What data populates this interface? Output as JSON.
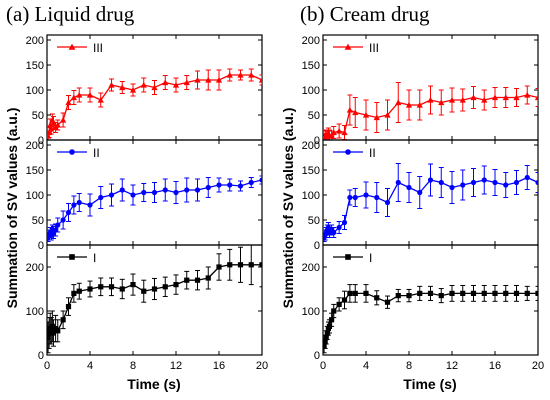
{
  "figure": {
    "panel_a_title": "(a) Liquid drug",
    "panel_b_title": "(b) Cream drug",
    "ylabel": "Summation of SV values (a.u.)",
    "xlabel": "Time (s)"
  },
  "chart_data": [
    {
      "type": "line",
      "panel": "a",
      "title": "(a) Liquid drug",
      "xlabel": "Time (s)",
      "ylabel": "Summation of SV values (a.u.)",
      "xlim": [
        0,
        20
      ],
      "xticks": [
        0,
        4,
        8,
        12,
        16,
        20
      ],
      "legend_position": "top-left",
      "grid": false,
      "subplots": [
        {
          "row": "top",
          "name": "III",
          "color": "#ff0000",
          "marker": "triangle",
          "ylim": [
            0,
            210
          ],
          "yticks": [
            0,
            50,
            100,
            150,
            200
          ],
          "x": [
            0.1,
            0.2,
            0.3,
            0.4,
            0.5,
            0.6,
            0.8,
            1.0,
            1.5,
            2.0,
            2.5,
            3,
            4,
            5,
            6,
            7,
            8,
            9,
            10,
            11,
            12,
            13,
            14,
            15,
            16,
            17,
            18,
            19,
            20
          ],
          "y": [
            8,
            15,
            30,
            22,
            40,
            35,
            25,
            30,
            40,
            75,
            85,
            90,
            90,
            80,
            110,
            105,
            100,
            110,
            105,
            115,
            110,
            115,
            120,
            120,
            120,
            130,
            130,
            130,
            120
          ],
          "err": [
            8,
            10,
            12,
            10,
            12,
            12,
            10,
            10,
            14,
            14,
            14,
            14,
            14,
            14,
            12,
            12,
            12,
            14,
            14,
            14,
            14,
            14,
            18,
            20,
            20,
            12,
            10,
            12,
            10
          ]
        },
        {
          "row": "middle",
          "name": "II",
          "color": "#0000ff",
          "marker": "circle",
          "ylim": [
            0,
            210
          ],
          "yticks": [
            0,
            50,
            100,
            150,
            200
          ],
          "x": [
            0.1,
            0.2,
            0.3,
            0.4,
            0.5,
            0.6,
            0.8,
            1.0,
            1.5,
            2.0,
            2.5,
            3,
            4,
            5,
            6,
            7,
            8,
            9,
            10,
            11,
            12,
            13,
            14,
            15,
            16,
            17,
            18,
            19,
            20
          ],
          "y": [
            15,
            20,
            25,
            20,
            30,
            25,
            30,
            40,
            50,
            65,
            80,
            85,
            80,
            95,
            100,
            110,
            100,
            105,
            105,
            110,
            105,
            110,
            110,
            115,
            120,
            120,
            118,
            125,
            130
          ],
          "err": [
            8,
            10,
            10,
            10,
            10,
            12,
            12,
            14,
            18,
            18,
            18,
            18,
            22,
            22,
            22,
            22,
            20,
            18,
            20,
            22,
            22,
            24,
            22,
            20,
            14,
            12,
            10,
            10,
            8
          ]
        },
        {
          "row": "bottom",
          "name": "I",
          "color": "#000000",
          "marker": "square",
          "ylim": [
            0,
            250
          ],
          "yticks": [
            0,
            100,
            200
          ],
          "x": [
            0.1,
            0.2,
            0.3,
            0.4,
            0.5,
            0.6,
            0.8,
            1.0,
            1.5,
            2.0,
            2.5,
            3,
            4,
            5,
            6,
            7,
            8,
            9,
            10,
            11,
            12,
            13,
            14,
            15,
            16,
            17,
            18,
            19,
            20
          ],
          "y": [
            40,
            50,
            60,
            55,
            65,
            50,
            60,
            55,
            80,
            110,
            140,
            145,
            150,
            155,
            155,
            150,
            160,
            145,
            150,
            155,
            160,
            170,
            170,
            175,
            200,
            205,
            205,
            205,
            205
          ],
          "err": [
            35,
            35,
            35,
            30,
            35,
            30,
            30,
            25,
            20,
            20,
            20,
            18,
            18,
            20,
            20,
            22,
            24,
            25,
            24,
            22,
            22,
            20,
            22,
            25,
            30,
            35,
            40,
            45,
            50
          ]
        }
      ]
    },
    {
      "type": "line",
      "panel": "b",
      "title": "(b) Cream drug",
      "xlabel": "Time (s)",
      "ylabel": "Summation of SV values (a.u.)",
      "xlim": [
        0,
        20
      ],
      "xticks": [
        0,
        4,
        8,
        12,
        16,
        20
      ],
      "legend_position": "top-left",
      "grid": false,
      "subplots": [
        {
          "row": "top",
          "name": "III",
          "color": "#ff0000",
          "marker": "triangle",
          "ylim": [
            0,
            210
          ],
          "yticks": [
            0,
            50,
            100,
            150,
            200
          ],
          "x": [
            0.1,
            0.2,
            0.3,
            0.4,
            0.5,
            0.6,
            0.8,
            1.0,
            1.5,
            2.0,
            2.5,
            3,
            4,
            5,
            6,
            7,
            8,
            9,
            10,
            11,
            12,
            13,
            14,
            15,
            16,
            17,
            18,
            19,
            20
          ],
          "y": [
            5,
            8,
            10,
            8,
            12,
            10,
            8,
            15,
            18,
            15,
            60,
            55,
            50,
            45,
            50,
            75,
            70,
            70,
            80,
            75,
            80,
            80,
            85,
            80,
            85,
            85,
            85,
            90,
            85
          ],
          "err": [
            8,
            10,
            10,
            10,
            12,
            10,
            10,
            12,
            14,
            14,
            30,
            30,
            30,
            30,
            30,
            40,
            30,
            30,
            28,
            25,
            24,
            22,
            22,
            20,
            20,
            20,
            18,
            18,
            18
          ]
        },
        {
          "row": "middle",
          "name": "II",
          "color": "#0000ff",
          "marker": "circle",
          "ylim": [
            0,
            210
          ],
          "yticks": [
            0,
            50,
            100,
            150,
            200
          ],
          "x": [
            0.1,
            0.2,
            0.3,
            0.4,
            0.5,
            0.6,
            0.8,
            1.0,
            1.5,
            2.0,
            2.5,
            3,
            4,
            5,
            6,
            7,
            8,
            9,
            10,
            11,
            12,
            13,
            14,
            15,
            16,
            17,
            18,
            19,
            20
          ],
          "y": [
            15,
            20,
            25,
            30,
            35,
            25,
            30,
            25,
            35,
            45,
            95,
            95,
            100,
            95,
            85,
            125,
            115,
            105,
            130,
            125,
            115,
            120,
            125,
            130,
            125,
            120,
            125,
            135,
            125
          ],
          "err": [
            8,
            10,
            10,
            10,
            10,
            10,
            10,
            10,
            12,
            14,
            15,
            18,
            26,
            30,
            28,
            38,
            30,
            32,
            32,
            30,
            32,
            30,
            28,
            28,
            26,
            25,
            24,
            24,
            20
          ]
        },
        {
          "row": "bottom",
          "name": "I",
          "color": "#000000",
          "marker": "square",
          "ylim": [
            0,
            250
          ],
          "yticks": [
            0,
            100,
            200
          ],
          "x": [
            0.1,
            0.2,
            0.3,
            0.4,
            0.5,
            0.6,
            0.8,
            1.0,
            1.5,
            2.0,
            2.5,
            3,
            4,
            5,
            6,
            7,
            8,
            9,
            10,
            11,
            12,
            13,
            14,
            15,
            16,
            17,
            18,
            19,
            20
          ],
          "y": [
            20,
            30,
            40,
            50,
            60,
            65,
            80,
            100,
            115,
            125,
            140,
            140,
            140,
            130,
            120,
            135,
            135,
            140,
            140,
            135,
            140,
            140,
            140,
            140,
            140,
            140,
            140,
            140,
            140
          ],
          "err": [
            15,
            15,
            15,
            15,
            15,
            15,
            15,
            15,
            15,
            20,
            20,
            20,
            20,
            16,
            14,
            14,
            14,
            16,
            16,
            16,
            18,
            18,
            18,
            18,
            18,
            18,
            18,
            16,
            16
          ]
        }
      ]
    }
  ]
}
